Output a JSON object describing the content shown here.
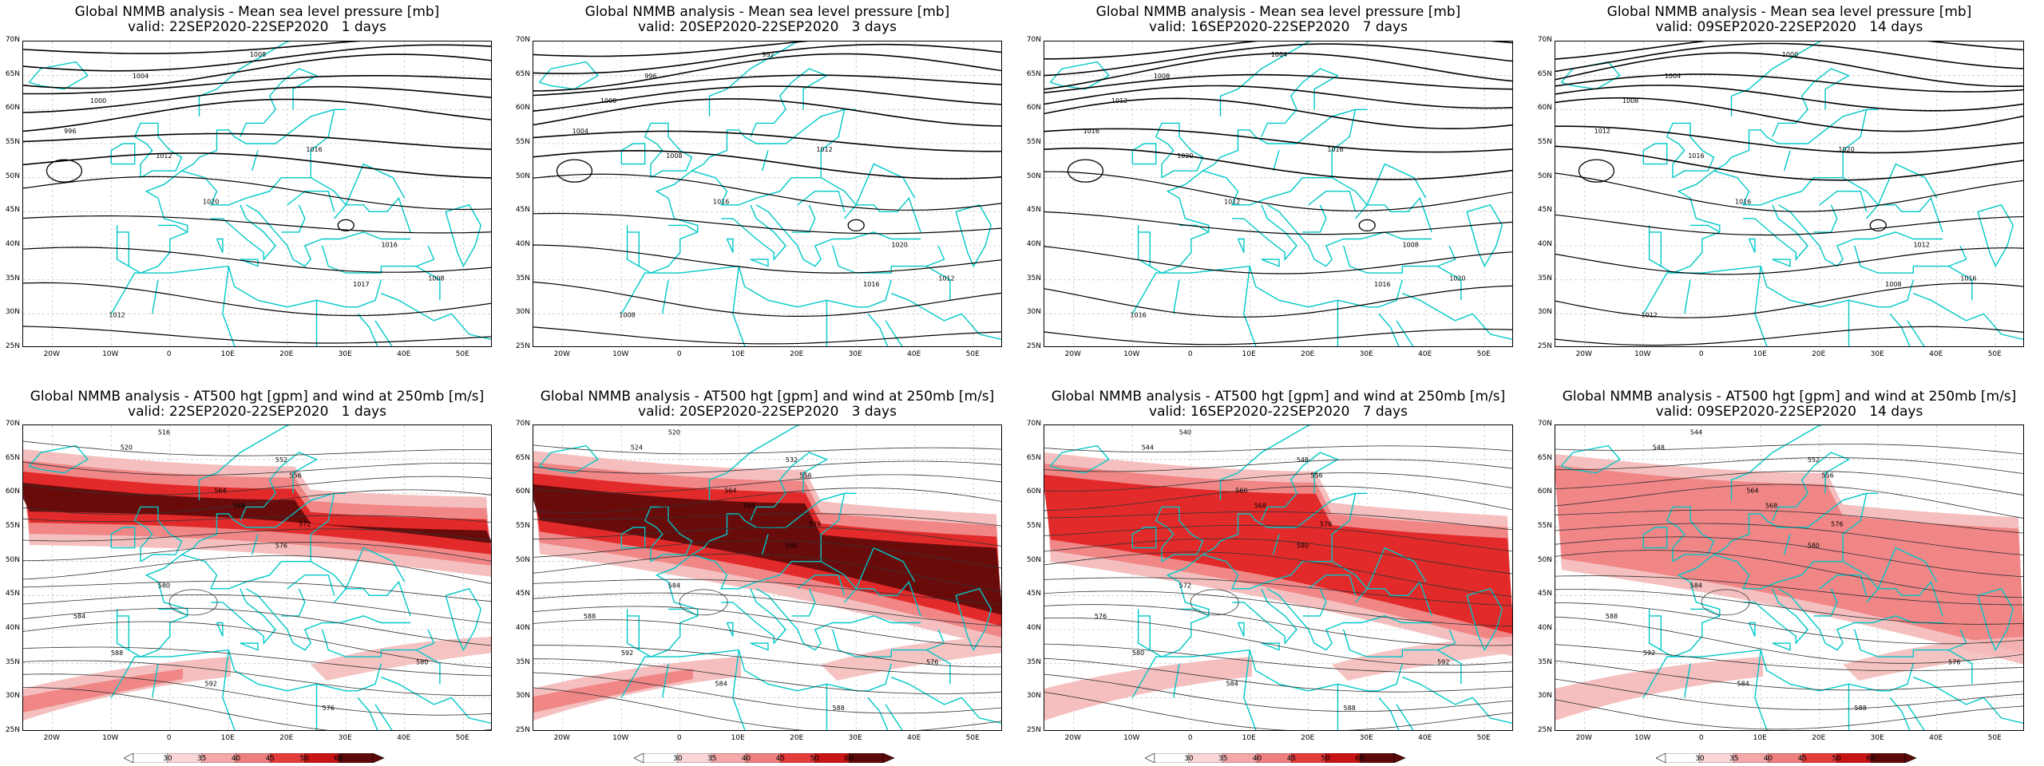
{
  "colors": {
    "coast": "#00c8c8",
    "isobar": "#000000",
    "grid": "#c8c8c8",
    "jet_light": "#f4b8b8",
    "jet_mid": "#ef7f7f",
    "jet_strong": "#e02020",
    "jet_core": "#5c0808"
  },
  "lat_labels": [
    "70N",
    "65N",
    "60N",
    "55N",
    "50N",
    "45N",
    "40N",
    "35N",
    "30N",
    "25N"
  ],
  "lon_labels": [
    "20W",
    "10W",
    "0",
    "10E",
    "20E",
    "30E",
    "40E",
    "50E"
  ],
  "colorbar_labels": [
    "30",
    "35",
    "40",
    "45",
    "50",
    "60"
  ],
  "mslp_panels": [
    {
      "title": "Global NMMB analysis - Mean sea level pressure [mb]",
      "subtitle": "valid: 22SEP2020-22SEP2020   1 days",
      "isobar_labels": [
        "1008",
        "1004",
        "1000",
        "996",
        "1012",
        "1016",
        "1020",
        "1016",
        "1017",
        "1008",
        "1012"
      ]
    },
    {
      "title": "Global NMMB analysis - Mean sea level pressure [mb]",
      "subtitle": "valid: 20SEP2020-22SEP2020   3 days",
      "isobar_labels": [
        "992",
        "996",
        "1000",
        "1004",
        "1008",
        "1012",
        "1016",
        "1020",
        "1016",
        "1012",
        "1008"
      ]
    },
    {
      "title": "Global NMMB analysis - Mean sea level pressure [mb]",
      "subtitle": "valid: 16SEP2020-22SEP2020   7 days",
      "isobar_labels": [
        "1004",
        "1008",
        "1012",
        "1016",
        "1020",
        "1016",
        "1012",
        "1008",
        "1016",
        "1020",
        "1016"
      ]
    },
    {
      "title": "Global NMMB analysis - Mean sea level pressure [mb]",
      "subtitle": "valid: 09SEP2020-22SEP2020   14 days",
      "isobar_labels": [
        "1000",
        "1004",
        "1008",
        "1012",
        "1016",
        "1020",
        "1016",
        "1012",
        "1008",
        "1016",
        "1012"
      ]
    }
  ],
  "z500_panels": [
    {
      "title": "Global NMMB analysis - AT500 hgt [gpm] and wind at 250mb [m/s]",
      "subtitle": "valid: 22SEP2020-22SEP2020   1 days",
      "contour_labels": [
        "516",
        "520",
        "552",
        "556",
        "564",
        "568",
        "572",
        "576",
        "580",
        "584",
        "588",
        "592",
        "576",
        "580"
      ]
    },
    {
      "title": "Global NMMB analysis - AT500 hgt [gpm] and wind at 250mb [m/s]",
      "subtitle": "valid: 20SEP2020-22SEP2020   3 days",
      "contour_labels": [
        "520",
        "524",
        "532",
        "556",
        "564",
        "568",
        "576",
        "580",
        "584",
        "588",
        "592",
        "584",
        "588",
        "576"
      ]
    },
    {
      "title": "Global NMMB analysis - AT500 hgt [gpm] and wind at 250mb [m/s]",
      "subtitle": "valid: 16SEP2020-22SEP2020   7 days",
      "contour_labels": [
        "540",
        "544",
        "548",
        "556",
        "560",
        "568",
        "576",
        "580",
        "572",
        "576",
        "580",
        "584",
        "588",
        "592"
      ]
    },
    {
      "title": "Global NMMB analysis - AT500 hgt [gpm] and wind at 250mb [m/s]",
      "subtitle": "valid: 09SEP2020-22SEP2020   14 days",
      "contour_labels": [
        "544",
        "548",
        "552",
        "556",
        "564",
        "568",
        "576",
        "580",
        "584",
        "588",
        "592",
        "584",
        "588",
        "576"
      ]
    }
  ]
}
